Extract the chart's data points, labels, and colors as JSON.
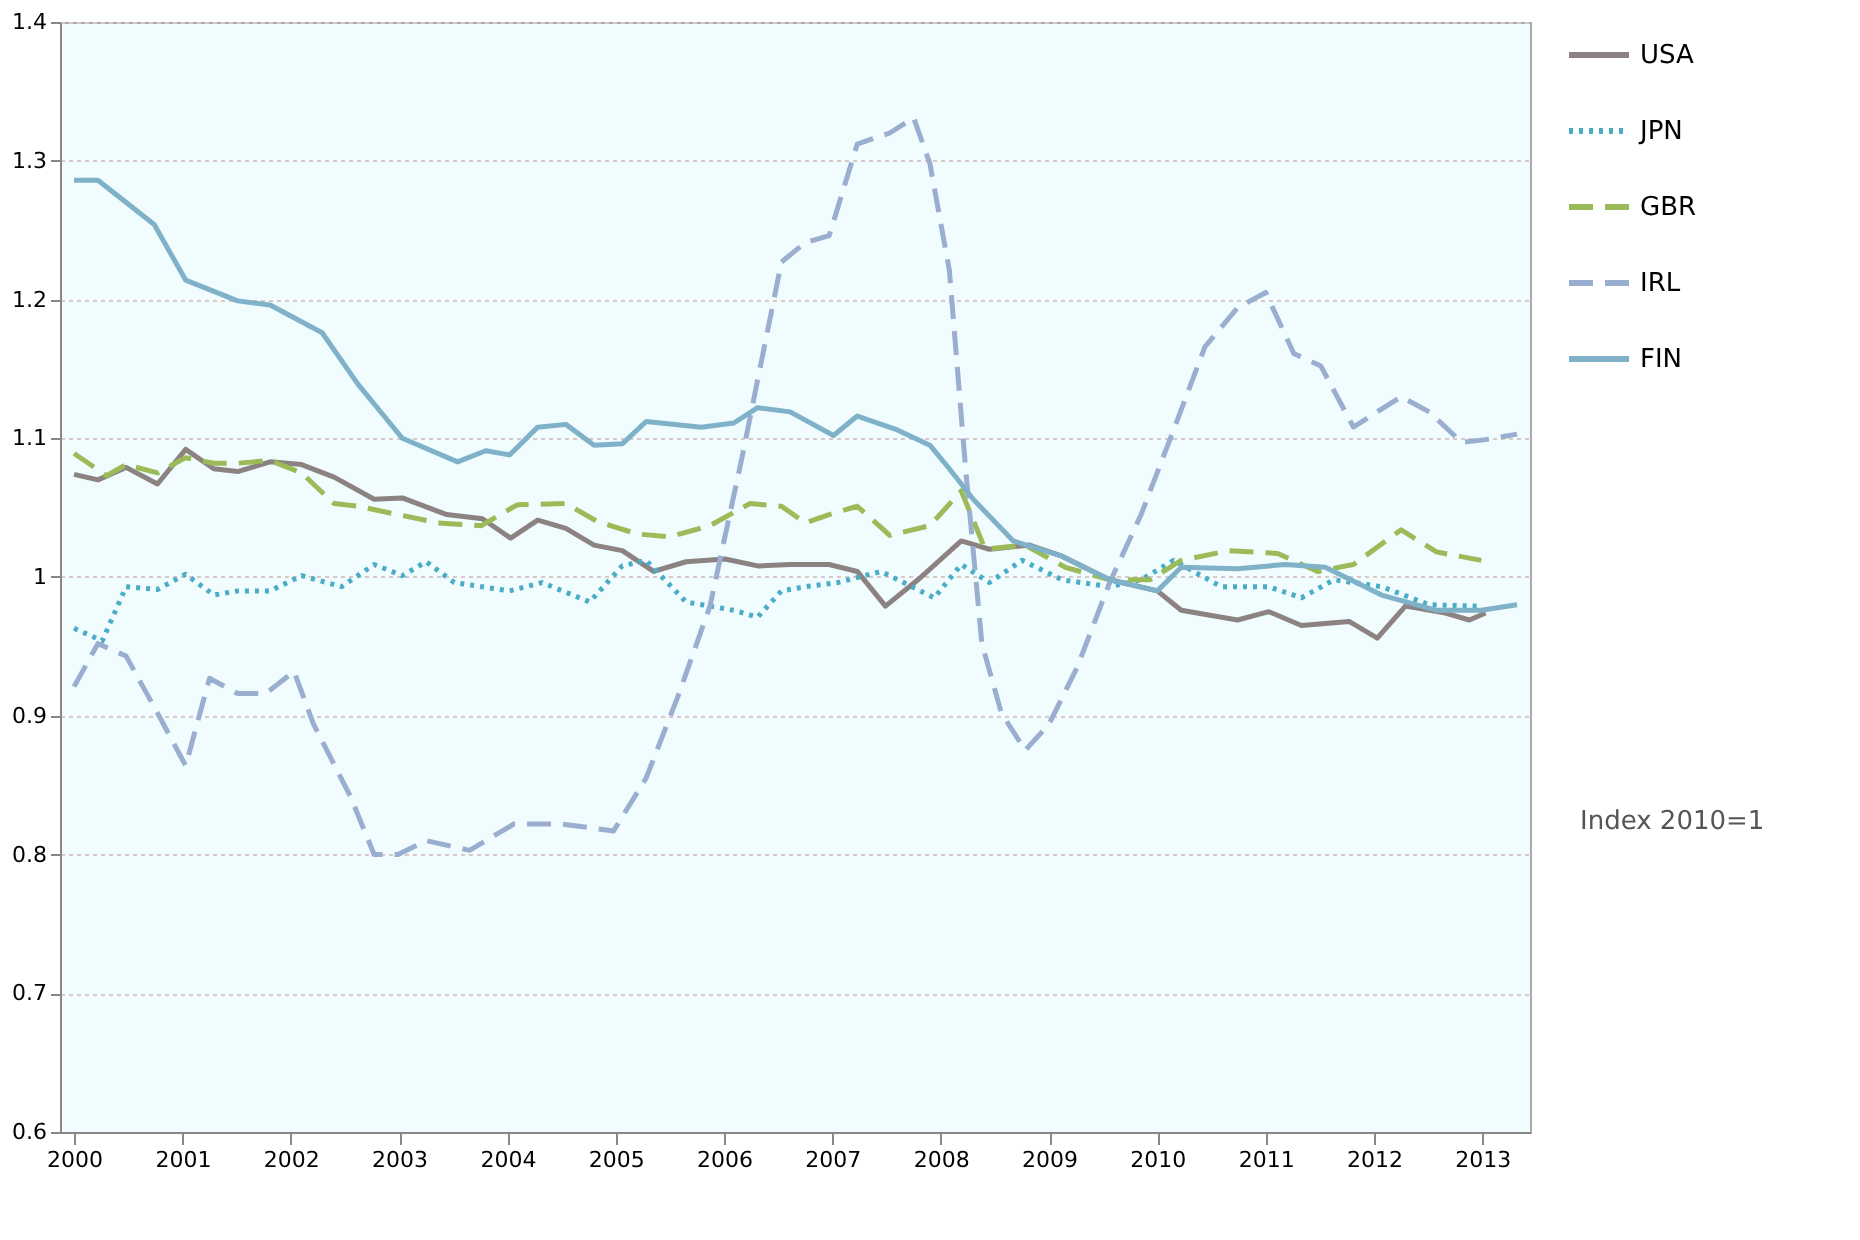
{
  "chart_data": {
    "type": "line",
    "xlim": [
      1999.87,
      2013.44
    ],
    "xticks": [
      2000,
      2001,
      2002,
      2003,
      2004,
      2005,
      2006,
      2007,
      2008,
      2009,
      2010,
      2011,
      2012,
      2013
    ],
    "ylim": [
      0.6,
      1.4
    ],
    "yticks": [
      0.6,
      0.7,
      0.8,
      0.9,
      1,
      1.1,
      1.2,
      1.3,
      1.4
    ],
    "grid": "y",
    "legend": "right",
    "annotations": [
      "Index 2010=1"
    ],
    "series": [
      {
        "name": "USA",
        "color": "#8c8282",
        "line_style": "solid",
        "x": [
          2000,
          2000.22,
          2000.48,
          2000.77,
          2001.03,
          2001.29,
          2001.51,
          2001.81,
          2002.1,
          2002.4,
          2002.77,
          2003.03,
          2003.44,
          2003.77,
          2004.03,
          2004.28,
          2004.54,
          2004.8,
          2005.06,
          2005.35,
          2005.65,
          2006.01,
          2006.31,
          2006.61,
          2006.97,
          2007.23,
          2007.49,
          2007.79,
          2008.19,
          2008.45,
          2008.82,
          2009.12,
          2009.56,
          2010.0,
          2010.22,
          2010.74,
          2011.03,
          2011.33,
          2011.77,
          2012.03,
          2012.29,
          2012.66,
          2012.88,
          2013.03
        ],
        "values": [
          1.074,
          1.07,
          1.079,
          1.067,
          1.092,
          1.078,
          1.076,
          1.083,
          1.081,
          1.072,
          1.056,
          1.057,
          1.045,
          1.042,
          1.028,
          1.041,
          1.035,
          1.023,
          1.019,
          1.004,
          1.011,
          1.013,
          1.008,
          1.009,
          1.009,
          1.004,
          0.979,
          0.998,
          1.026,
          1.02,
          1.023,
          1.015,
          0.998,
          0.99,
          0.976,
          0.969,
          0.975,
          0.965,
          0.968,
          0.956,
          0.979,
          0.974,
          0.969,
          0.974
        ]
      },
      {
        "name": "JPN",
        "color": "#4bacc6",
        "line_style": "dotted",
        "x": [
          2000,
          2000.26,
          2000.48,
          2000.77,
          2001.03,
          2001.29,
          2001.51,
          2001.81,
          2002.1,
          2002.47,
          2002.77,
          2003.03,
          2003.25,
          2003.51,
          2004.02,
          2004.32,
          2004.76,
          2005.06,
          2005.28,
          2005.65,
          2006.09,
          2006.31,
          2006.53,
          2006.75,
          2007.05,
          2007.45,
          2007.94,
          2008.19,
          2008.45,
          2008.75,
          2009.12,
          2009.56,
          2009.85,
          2010.15,
          2010.59,
          2011.03,
          2011.33,
          2011.63,
          2012.07,
          2012.51,
          2012.95
        ],
        "values": [
          0.963,
          0.954,
          0.993,
          0.991,
          1.002,
          0.987,
          0.99,
          0.99,
          1.001,
          0.993,
          1.009,
          1.001,
          1.011,
          0.996,
          0.99,
          0.996,
          0.982,
          1.008,
          1.012,
          0.982,
          0.976,
          0.971,
          0.99,
          0.993,
          0.996,
          1.004,
          0.985,
          1.009,
          0.996,
          1.012,
          0.998,
          0.993,
          0.998,
          1.012,
          0.993,
          0.993,
          0.985,
          0.998,
          0.993,
          0.98,
          0.979
        ]
      },
      {
        "name": "GBR",
        "color": "#9bbb59",
        "line_style": "dashed",
        "x": [
          2000,
          2000.3,
          2000.48,
          2000.77,
          2001.03,
          2001.29,
          2001.51,
          2001.81,
          2002.1,
          2002.4,
          2002.62,
          2002.99,
          2003.36,
          2003.76,
          2004.09,
          2004.54,
          2004.83,
          2005.2,
          2005.5,
          2005.87,
          2006.24,
          2006.53,
          2006.75,
          2006.97,
          2007.23,
          2007.53,
          2007.9,
          2008.19,
          2008.41,
          2008.78,
          2009.15,
          2009.56,
          2009.93,
          2010.22,
          2010.66,
          2011.11,
          2011.48,
          2011.81,
          2012.25,
          2012.58,
          2012.99
        ],
        "values": [
          1.089,
          1.073,
          1.081,
          1.075,
          1.086,
          1.082,
          1.082,
          1.084,
          1.075,
          1.053,
          1.051,
          1.045,
          1.039,
          1.037,
          1.052,
          1.053,
          1.04,
          1.031,
          1.029,
          1.037,
          1.053,
          1.051,
          1.039,
          1.045,
          1.051,
          1.03,
          1.037,
          1.062,
          1.02,
          1.023,
          1.007,
          0.998,
          0.998,
          1.012,
          1.019,
          1.017,
          1.004,
          1.009,
          1.034,
          1.018,
          1.012
        ]
      },
      {
        "name": "IRL",
        "color": "#9aaed0",
        "line_style": "dashed",
        "x": [
          2000,
          2000.22,
          2000.48,
          2000.77,
          2001.03,
          2001.25,
          2001.51,
          2001.77,
          2002.03,
          2002.21,
          2002.55,
          2002.77,
          2002.99,
          2003.25,
          2003.65,
          2004.06,
          2004.5,
          2004.98,
          2005.28,
          2005.57,
          2005.87,
          2006.16,
          2006.53,
          2006.75,
          2006.97,
          2007.23,
          2007.34,
          2007.53,
          2007.75,
          2007.9,
          2008.08,
          2008.23,
          2008.38,
          2008.56,
          2008.78,
          2009.0,
          2009.26,
          2009.56,
          2009.85,
          2010.15,
          2010.44,
          2010.74,
          2011.0,
          2011.26,
          2011.51,
          2011.81,
          2012.25,
          2012.51,
          2012.81,
          2013.03,
          2013.32
        ],
        "values": [
          0.921,
          0.952,
          0.943,
          0.902,
          0.864,
          0.927,
          0.916,
          0.916,
          0.932,
          0.894,
          0.842,
          0.8,
          0.8,
          0.81,
          0.803,
          0.822,
          0.822,
          0.817,
          0.855,
          0.913,
          0.979,
          1.084,
          1.227,
          1.241,
          1.246,
          1.312,
          1.315,
          1.32,
          1.331,
          1.298,
          1.221,
          1.078,
          0.952,
          0.902,
          0.875,
          0.894,
          0.935,
          0.996,
          1.045,
          1.106,
          1.166,
          1.194,
          1.205,
          1.161,
          1.152,
          1.108,
          1.13,
          1.119,
          1.097,
          1.099,
          1.103
        ]
      },
      {
        "name": "FIN",
        "color": "#7fb2c8",
        "line_style": "solid",
        "x": [
          2000,
          2000.22,
          2000.74,
          2001.03,
          2001.51,
          2001.81,
          2002.29,
          2002.62,
          2003.03,
          2003.54,
          2003.8,
          2004.02,
          2004.28,
          2004.54,
          2004.8,
          2005.06,
          2005.28,
          2005.79,
          2006.09,
          2006.31,
          2006.61,
          2007.01,
          2007.23,
          2007.6,
          2007.9,
          2008.08,
          2008.3,
          2008.67,
          2009.12,
          2009.56,
          2010.0,
          2010.22,
          2010.74,
          2011.18,
          2011.55,
          2012.07,
          2012.58,
          2012.99,
          2013.32
        ],
        "values": [
          1.286,
          1.286,
          1.254,
          1.214,
          1.199,
          1.196,
          1.176,
          1.139,
          1.1,
          1.083,
          1.091,
          1.088,
          1.108,
          1.11,
          1.095,
          1.096,
          1.112,
          1.108,
          1.111,
          1.122,
          1.119,
          1.102,
          1.116,
          1.106,
          1.095,
          1.078,
          1.056,
          1.026,
          1.015,
          0.998,
          0.99,
          1.007,
          1.006,
          1.009,
          1.007,
          0.987,
          0.976,
          0.976,
          0.98
        ]
      }
    ]
  }
}
